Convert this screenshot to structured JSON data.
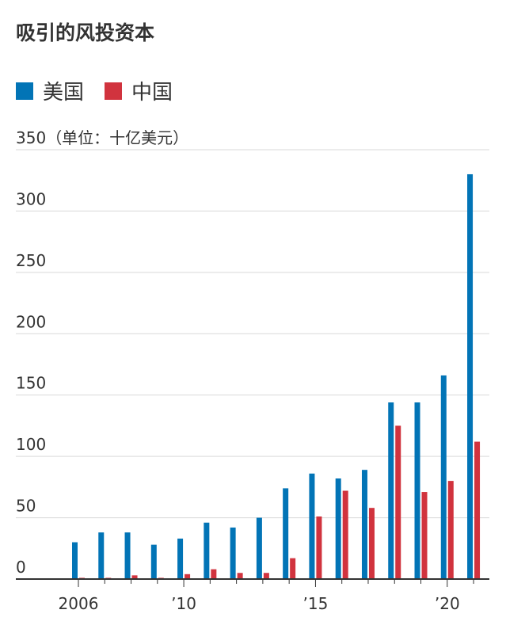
{
  "chart_data": {
    "type": "bar",
    "title": "吸引的风投资本",
    "unit_label": "（单位：十亿美元）",
    "years": [
      2006,
      2007,
      2008,
      2009,
      2010,
      2011,
      2012,
      2013,
      2014,
      2015,
      2016,
      2017,
      2018,
      2019,
      2020,
      2021
    ],
    "x_tick_labels": [
      {
        "year": 2006,
        "label": "2006"
      },
      {
        "year": 2010,
        "label": "’10"
      },
      {
        "year": 2015,
        "label": "’15"
      },
      {
        "year": 2020,
        "label": "’20"
      }
    ],
    "series": [
      {
        "name": "美国",
        "color": "#0274b6",
        "values": [
          30,
          38,
          38,
          28,
          33,
          46,
          42,
          50,
          74,
          86,
          82,
          89,
          144,
          144,
          166,
          330
        ]
      },
      {
        "name": "中国",
        "color": "#d1333e",
        "values": [
          1,
          1,
          3,
          1,
          4,
          8,
          5,
          5,
          17,
          51,
          72,
          58,
          125,
          71,
          80,
          112
        ]
      }
    ],
    "ylim": [
      0,
      350
    ],
    "yticks": [
      0,
      50,
      100,
      150,
      200,
      250,
      300,
      350
    ],
    "grid": true,
    "legend_position": "top-left"
  },
  "colors": {
    "grid": "#d9d9d9",
    "axis": "#333333",
    "text": "#333333"
  }
}
